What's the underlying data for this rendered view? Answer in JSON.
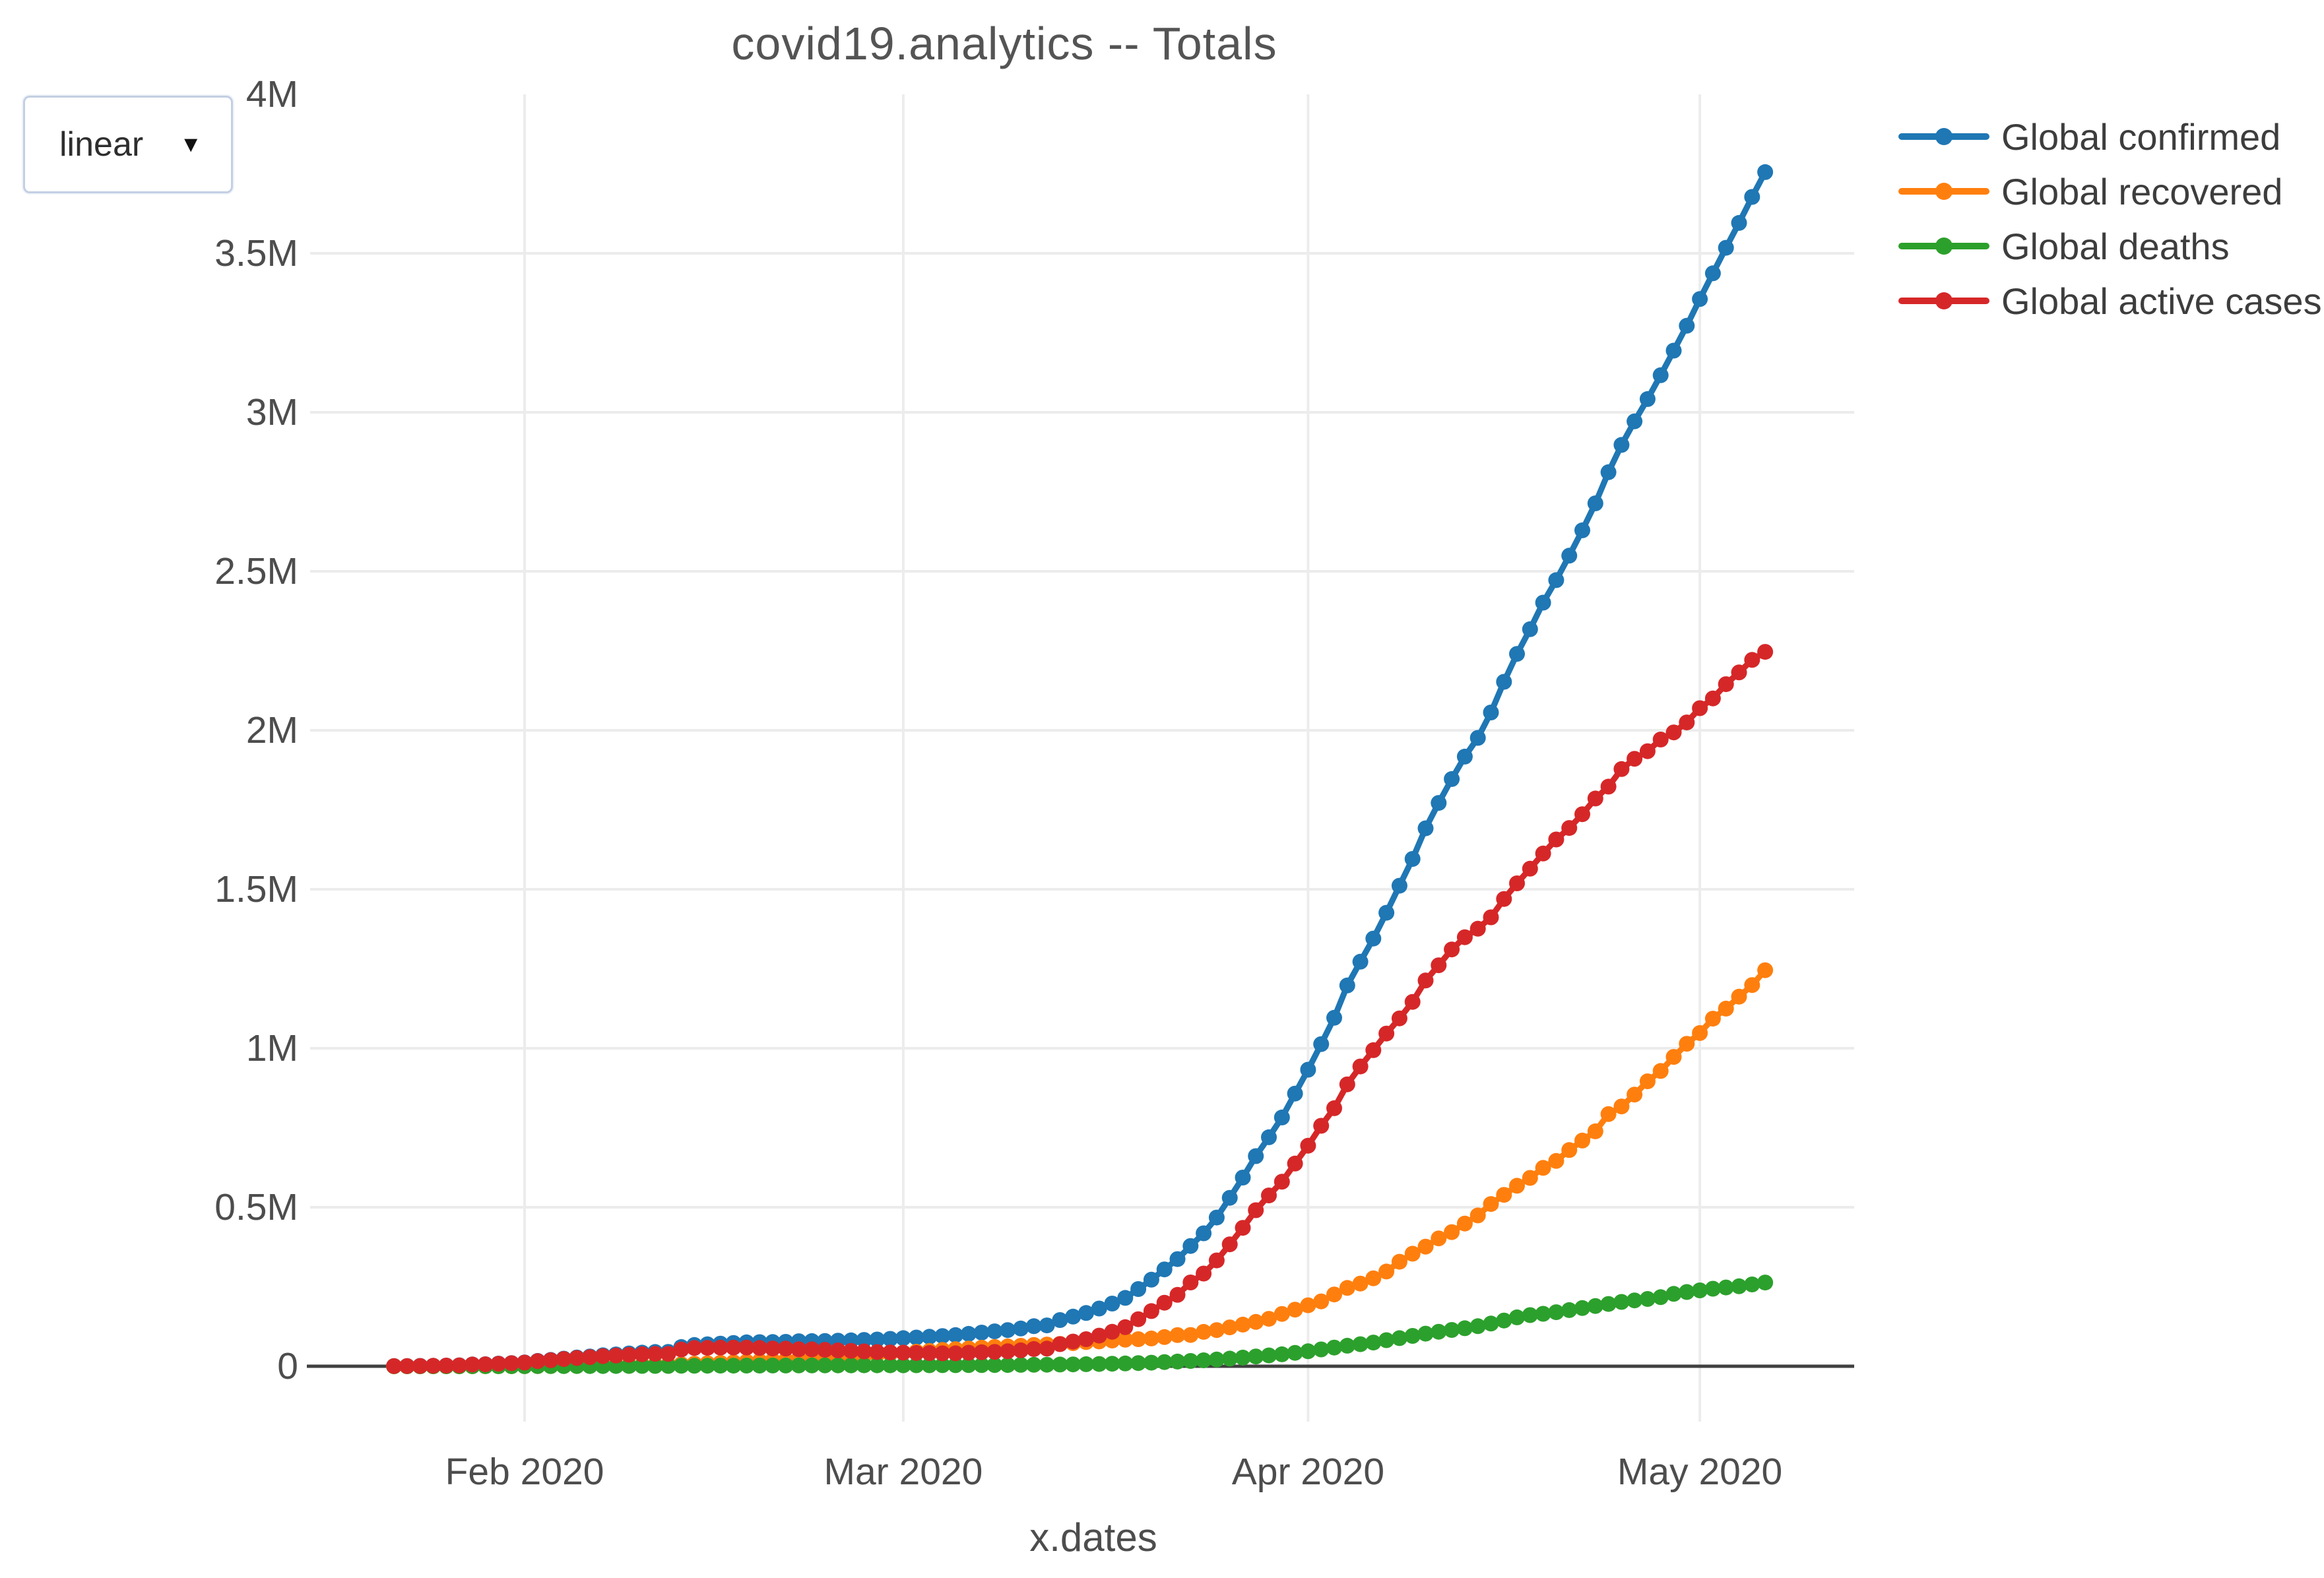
{
  "scale_selector": {
    "value": "linear",
    "caret": "▼"
  },
  "chart_data": {
    "type": "line",
    "title": "covid19.analytics -- Totals",
    "xlabel": "x.dates",
    "ylabel": "",
    "grid": true,
    "legend_position": "top-right",
    "x_start_date": "2020-01-22",
    "x_end_date": "2020-05-06",
    "x_tick_labels": [
      "Feb 2020",
      "Mar 2020",
      "Apr 2020",
      "May 2020"
    ],
    "x_tick_day_indices": [
      10,
      39,
      70,
      100
    ],
    "y_tick_labels": [
      "0",
      "0.5M",
      "1M",
      "1.5M",
      "2M",
      "2.5M",
      "3M",
      "3.5M",
      "4M"
    ],
    "y_tick_values_thousands": [
      0,
      500,
      1000,
      1500,
      2000,
      2500,
      3000,
      3500,
      4000
    ],
    "ylim_thousands": [
      0,
      4000
    ],
    "values_unit": "thousands",
    "series": [
      {
        "name": "Global confirmed",
        "color": "#1f77b4",
        "values": [
          0.56,
          0.65,
          0.94,
          1.43,
          2.12,
          2.93,
          5.58,
          6.17,
          8.23,
          9.93,
          12.04,
          16.79,
          19.88,
          23.89,
          27.64,
          30.8,
          34.39,
          37.12,
          40.15,
          42.76,
          44.8,
          45.22,
          60.37,
          66.89,
          69.03,
          71.23,
          73.26,
          75.14,
          75.69,
          76.2,
          76.82,
          78.6,
          78.96,
          79.56,
          80.41,
          81.4,
          82.75,
          84.12,
          86.01,
          88.37,
          90.31,
          92.84,
          95.12,
          97.89,
          101.8,
          105.82,
          109.82,
          113.59,
          118.62,
          125.87,
          128.34,
          145.19,
          156.1,
          167.45,
          181.53,
          197.14,
          214.91,
          242.71,
          272.17,
          304.52,
          336.95,
          378.23,
          418.05,
          467.65,
          529.59,
          593.29,
          660.71,
          720.14,
          782.39,
          857.49,
          932.61,
          1013.16,
          1095.92,
          1197.41,
          1272.12,
          1345.1,
          1426.1,
          1511.1,
          1595.35,
          1691.72,
          1771.51,
          1846.68,
          1917.32,
          1976.19,
          2056.05,
          2152.44,
          2240.19,
          2317.76,
          2401.38,
          2472.26,
          2549.12,
          2628.92,
          2713.69,
          2811.6,
          2897.43,
          2971.67,
          3041.67,
          3116.68,
          3193.89,
          3272.2,
          3356.21,
          3437.09,
          3517.35,
          3595.67,
          3677.46,
          3755.34
        ]
      },
      {
        "name": "Global recovered",
        "color": "#ff7f0e",
        "values": [
          0.03,
          0.03,
          0.04,
          0.04,
          0.05,
          0.06,
          0.1,
          0.11,
          0.14,
          0.19,
          0.28,
          0.47,
          0.62,
          0.85,
          1.12,
          1.49,
          2.03,
          2.61,
          3.24,
          3.95,
          4.64,
          5.15,
          6.3,
          8.0,
          9.39,
          10.87,
          12.58,
          14.35,
          16.12,
          18.18,
          18.89,
          22.89,
          23.39,
          25.23,
          27.91,
          30.38,
          33.28,
          36.71,
          39.78,
          42.72,
          45.6,
          48.23,
          51.17,
          53.8,
          55.87,
          58.36,
          60.69,
          62.49,
          64.4,
          67.0,
          68.32,
          70.25,
          72.62,
          76.03,
          78.09,
          80.84,
          83.31,
          84.96,
          87.42,
          91.68,
          97.88,
          98.33,
          108.0,
          113.79,
          122.15,
          130.92,
          139.42,
          149.08,
          164.57,
          178.1,
          191.8,
          204.0,
          225.8,
          246.2,
          260.0,
          276.5,
          297.9,
          328.7,
          353.9,
          376.1,
          402.1,
          421.7,
          448.7,
          474.3,
          510.1,
          539.1,
          567.7,
          592.3,
          623.9,
          645.7,
          679.8,
          709.7,
          738.8,
          792.9,
          817.1,
          854.3,
          896.0,
          928.6,
          972.9,
          1014.2,
          1048.0,
          1093.1,
          1124.6,
          1162.2,
          1198.8,
          1245.4
        ]
      },
      {
        "name": "Global deaths",
        "color": "#2ca02c",
        "values": [
          0.02,
          0.02,
          0.03,
          0.04,
          0.06,
          0.08,
          0.13,
          0.13,
          0.17,
          0.21,
          0.26,
          0.36,
          0.43,
          0.49,
          0.56,
          0.63,
          0.72,
          0.81,
          0.91,
          1.01,
          1.11,
          1.12,
          1.37,
          1.52,
          1.67,
          1.77,
          1.87,
          2.01,
          2.12,
          2.25,
          2.25,
          2.46,
          2.47,
          2.63,
          2.71,
          2.77,
          2.81,
          2.87,
          2.94,
          3.0,
          3.09,
          3.16,
          3.25,
          3.35,
          3.46,
          3.56,
          3.8,
          4.0,
          4.3,
          4.62,
          4.72,
          5.4,
          5.82,
          6.44,
          7.13,
          7.91,
          8.73,
          9.87,
          11.3,
          12.97,
          14.65,
          16.51,
          18.63,
          21.18,
          23.97,
          27.2,
          30.65,
          33.93,
          37.58,
          42.11,
          47.18,
          52.98,
          58.79,
          64.61,
          69.37,
          74.57,
          81.87,
          88.34,
          95.51,
          102.53,
          108.5,
          114.09,
          119.48,
          125.98,
          134.18,
          143.8,
          153.82,
          160.72,
          165.04,
          169.99,
          176.58,
          183.03,
          189.5,
          195.92,
          202.25,
          206.99,
          211.54,
          217.15,
          227.64,
          233.36,
          238.62,
          243.81,
          247.75,
          251.54,
          257.24,
          263.35
        ]
      },
      {
        "name": "Global active cases",
        "color": "#d62728",
        "values": [
          0.51,
          0.6,
          0.87,
          1.35,
          2.01,
          2.79,
          5.35,
          5.93,
          7.92,
          9.53,
          11.5,
          15.96,
          18.83,
          22.55,
          25.96,
          28.68,
          31.64,
          33.7,
          36.0,
          37.8,
          39.05,
          38.95,
          52.7,
          57.37,
          57.97,
          58.59,
          58.81,
          58.78,
          57.45,
          55.77,
          55.68,
          53.25,
          53.1,
          51.7,
          49.79,
          48.25,
          46.66,
          44.54,
          43.29,
          42.65,
          41.62,
          41.45,
          40.7,
          40.74,
          42.47,
          43.9,
          45.33,
          47.1,
          49.92,
          54.25,
          55.3,
          69.54,
          77.66,
          84.98,
          96.31,
          108.39,
          122.87,
          147.88,
          173.45,
          199.87,
          224.42,
          263.39,
          291.42,
          332.68,
          383.47,
          435.17,
          490.64,
          537.13,
          580.24,
          637.28,
          693.63,
          756.18,
          811.33,
          886.6,
          942.75,
          994.03,
          1046.33,
          1094.06,
          1145.94,
          1213.09,
          1260.91,
          1310.89,
          1349.14,
          1375.91,
          1411.77,
          1469.54,
          1518.67,
          1564.74,
          1612.44,
          1656.57,
          1692.74,
          1736.19,
          1785.39,
          1822.78,
          1878.08,
          1910.38,
          1934.13,
          1970.93,
          1993.35,
          2024.64,
          2069.59,
          2100.18,
          2145.0,
          2181.93,
          2221.42,
          2246.59
        ]
      }
    ]
  }
}
